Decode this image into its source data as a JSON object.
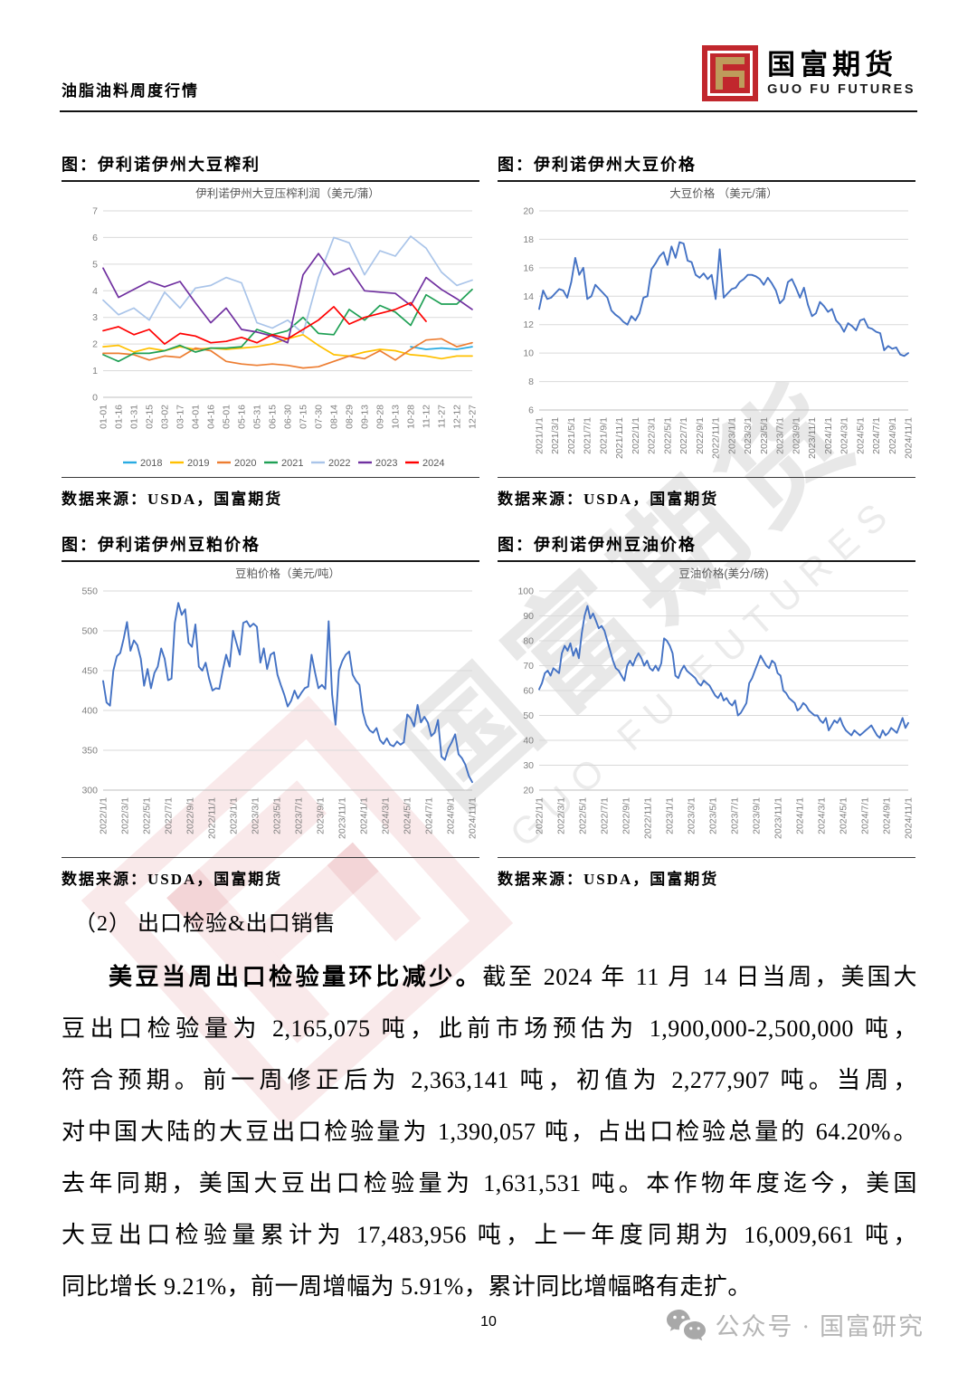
{
  "header": {
    "doc_title": "油脂油料周度行情",
    "brand_cn": "国富期货",
    "brand_en": "GUO FU FUTURES"
  },
  "watermark": {
    "text_cn": "国富期货",
    "text_en": "GUO FU FUTURES"
  },
  "section": {
    "heading": "（2）  出口检验&出口销售"
  },
  "paragraph": {
    "lines": [
      {
        "bold": "美豆当周出口检验量环比减少。",
        "text": "截至 2024 年 11 月 14 日当周，美国大"
      },
      {
        "text": "豆出口检验量为 2,165,075 吨，此前市场预估为 1,900,000-2,500,000 吨，"
      },
      {
        "text": "符合预期。前一周修正后为 2,363,141 吨，初值为 2,277,907 吨。当周，"
      },
      {
        "text": "对中国大陆的大豆出口检验量为 1,390,057 吨，占出口检验总量的 64.20%。"
      },
      {
        "text": "去年同期，美国大豆出口检验量为 1,631,531 吨。本作物年度迄今，美国"
      },
      {
        "text": "大豆出口检验量累计为 17,483,956 吨，上一年度同期为 16,009,661 吨，"
      },
      {
        "text": "同比增长 9.21%，前一周增幅为 5.91%，累计同比增幅略有走扩。"
      }
    ]
  },
  "footer": {
    "page_number": "10",
    "wechat_label": "公众号 · 国富研究"
  },
  "chart_data": [
    {
      "type": "line",
      "heading": "图：伊利诺伊州大豆榨利",
      "title": "伊利诺伊州大豆压榨利润（美元/蒲）",
      "source": "数据来源：USDA，国富期货",
      "ylim": [
        0,
        7
      ],
      "ystep": 1,
      "grid": true,
      "legend_position": "bottom",
      "categories": [
        "01-01",
        "01-16",
        "01-31",
        "02-15",
        "03-02",
        "03-17",
        "04-01",
        "04-16",
        "05-01",
        "05-16",
        "05-31",
        "06-15",
        "06-30",
        "07-15",
        "07-30",
        "08-14",
        "08-29",
        "09-13",
        "09-28",
        "10-13",
        "10-28",
        "11-12",
        "11-27",
        "12-12",
        "12-27"
      ],
      "series": [
        {
          "name": "2018",
          "color": "#29ABE2",
          "values": [
            null,
            null,
            null,
            null,
            null,
            null,
            null,
            null,
            null,
            null,
            null,
            null,
            null,
            null,
            null,
            null,
            null,
            null,
            null,
            null,
            1.9,
            1.8,
            1.85,
            1.8,
            1.9
          ]
        },
        {
          "name": "2019",
          "color": "#FFC000",
          "values": [
            1.9,
            1.95,
            1.7,
            1.85,
            1.75,
            1.9,
            1.8,
            1.85,
            1.8,
            1.85,
            1.9,
            2.0,
            2.2,
            2.35,
            1.95,
            1.6,
            1.55,
            1.7,
            1.8,
            1.75,
            1.6,
            1.55,
            1.45,
            1.55,
            1.55
          ]
        },
        {
          "name": "2020",
          "color": "#ED7D31",
          "values": [
            1.65,
            1.65,
            1.6,
            1.4,
            1.55,
            1.5,
            1.85,
            1.75,
            1.35,
            1.25,
            1.2,
            1.25,
            1.2,
            1.1,
            1.15,
            1.35,
            1.55,
            1.45,
            1.75,
            1.4,
            1.8,
            2.15,
            2.2,
            1.9,
            2.05
          ]
        },
        {
          "name": "2021",
          "color": "#1FA055",
          "values": [
            1.6,
            1.35,
            1.65,
            1.65,
            1.75,
            1.95,
            1.7,
            1.85,
            1.85,
            1.9,
            2.55,
            2.35,
            2.5,
            3.0,
            2.4,
            2.35,
            3.3,
            2.9,
            3.45,
            3.2,
            2.7,
            3.85,
            3.5,
            3.5,
            4.05
          ]
        },
        {
          "name": "2022",
          "color": "#A9C4E9",
          "values": [
            3.65,
            3.1,
            3.35,
            2.9,
            3.95,
            3.35,
            4.1,
            4.2,
            4.5,
            4.3,
            2.8,
            2.6,
            2.9,
            2.4,
            4.5,
            6.0,
            5.8,
            4.6,
            5.5,
            5.3,
            6.05,
            5.6,
            4.7,
            4.2,
            4.4
          ]
        },
        {
          "name": "2023",
          "color": "#7030A0",
          "values": [
            4.85,
            3.75,
            4.05,
            4.35,
            4.15,
            4.35,
            3.55,
            2.8,
            3.35,
            2.55,
            2.45,
            2.3,
            2.05,
            4.6,
            5.4,
            4.6,
            4.85,
            4.0,
            3.95,
            3.9,
            3.45,
            4.5,
            4.05,
            3.7,
            3.3
          ]
        },
        {
          "name": "2024",
          "color": "#FF0000",
          "values": [
            2.5,
            2.65,
            2.35,
            2.55,
            2.0,
            2.4,
            2.3,
            2.05,
            2.1,
            2.25,
            2.05,
            2.35,
            2.2,
            2.55,
            2.9,
            3.4,
            2.75,
            3.0,
            3.15,
            3.3,
            3.55,
            2.85,
            null,
            null,
            null
          ]
        }
      ]
    },
    {
      "type": "line",
      "heading": "图：伊利诺伊州大豆价格",
      "title": "大豆价格 （美元/蒲）",
      "source": "数据来源：USDA，国富期货",
      "ylim": [
        6,
        20
      ],
      "ystep": 2,
      "grid": true,
      "x_ticks": [
        "2021/1/1",
        "2021/3/1",
        "2021/5/1",
        "2021/7/1",
        "2021/9/1",
        "2021/11/1",
        "2022/1/1",
        "2022/3/1",
        "2022/5/1",
        "2022/7/1",
        "2022/9/1",
        "2022/11/1",
        "2023/1/1",
        "2023/3/1",
        "2023/5/1",
        "2023/7/1",
        "2023/9/1",
        "2023/11/1",
        "2024/1/1",
        "2024/3/1",
        "2024/5/1",
        "2024/7/1",
        "2024/9/1",
        "2024/11/1"
      ],
      "series": [
        {
          "name": "大豆价格",
          "color": "#4472C4",
          "values": [
            13.1,
            14.4,
            13.8,
            13.9,
            14.2,
            14.5,
            14.4,
            13.9,
            15.0,
            16.7,
            15.5,
            16.0,
            13.8,
            14.0,
            14.8,
            14.5,
            14.2,
            13.9,
            13.0,
            12.7,
            12.5,
            12.2,
            12.0,
            12.6,
            12.3,
            12.8,
            13.9,
            14.0,
            15.9,
            16.3,
            16.8,
            17.1,
            16.2,
            17.5,
            16.7,
            17.8,
            17.7,
            16.5,
            16.4,
            15.5,
            15.3,
            15.6,
            15.2,
            15.5,
            13.8,
            17.3,
            13.9,
            14.2,
            14.5,
            14.6,
            15.0,
            15.2,
            15.5,
            15.5,
            15.4,
            15.2,
            14.8,
            15.3,
            14.9,
            14.4,
            13.5,
            13.8,
            15.0,
            15.2,
            14.6,
            13.9,
            14.6,
            13.4,
            12.6,
            12.8,
            13.6,
            13.3,
            12.9,
            13.1,
            12.3,
            12.0,
            11.5,
            12.1,
            11.9,
            11.6,
            12.3,
            12.4,
            11.8,
            11.7,
            11.5,
            11.4,
            10.2,
            10.5,
            10.3,
            10.4,
            9.9,
            9.8,
            10.0
          ]
        }
      ]
    },
    {
      "type": "line",
      "heading": "图：伊利诺伊州豆粕价格",
      "title": "豆粕价格（美元/吨）",
      "source": "数据来源：USDA，国富期货",
      "ylim": [
        300,
        550
      ],
      "ystep": 50,
      "grid": true,
      "x_ticks": [
        "2022/1/1",
        "2022/3/1",
        "2022/5/1",
        "2022/7/1",
        "2022/9/1",
        "2022/11/1",
        "2023/1/1",
        "2023/3/1",
        "2023/5/1",
        "2023/7/1",
        "2023/9/1",
        "2023/11/1",
        "2024/1/1",
        "2024/3/1",
        "2024/5/1",
        "2024/7/1",
        "2024/9/1",
        "2024/11/1"
      ],
      "series": [
        {
          "name": "豆粕价格",
          "color": "#4472C4",
          "values": [
            437,
            410,
            406,
            450,
            468,
            472,
            490,
            511,
            475,
            488,
            482,
            465,
            431,
            452,
            428,
            447,
            455,
            478,
            465,
            438,
            440,
            510,
            535,
            520,
            527,
            485,
            480,
            508,
            455,
            450,
            460,
            440,
            425,
            428,
            427,
            450,
            470,
            455,
            500,
            485,
            470,
            510,
            512,
            505,
            509,
            505,
            460,
            478,
            452,
            470,
            473,
            445,
            432,
            420,
            405,
            412,
            425,
            415,
            422,
            428,
            430,
            470,
            448,
            428,
            432,
            427,
            512,
            420,
            382,
            450,
            462,
            470,
            474,
            445,
            437,
            432,
            398,
            382,
            375,
            372,
            378,
            363,
            358,
            365,
            357,
            355,
            361,
            357,
            360,
            395,
            390,
            380,
            407,
            385,
            392,
            385,
            368,
            372,
            388,
            342,
            338,
            352,
            360,
            370,
            345,
            340,
            332,
            318,
            310
          ]
        }
      ]
    },
    {
      "type": "line",
      "heading": "图：伊利诺伊州豆油价格",
      "title": "豆油价格(美分/磅)",
      "source": "数据来源：USDA，国富期货",
      "ylim": [
        20,
        100
      ],
      "ystep": 10,
      "grid": true,
      "x_ticks": [
        "2022/1/1",
        "2022/3/1",
        "2022/5/1",
        "2022/7/1",
        "2022/9/1",
        "2022/11/1",
        "2023/1/1",
        "2023/3/1",
        "2023/5/1",
        "2023/7/1",
        "2023/9/1",
        "2023/11/1",
        "2024/1/1",
        "2024/3/1",
        "2024/5/1",
        "2024/7/1",
        "2024/9/1",
        "2024/11/1"
      ],
      "series": [
        {
          "name": "豆油价格",
          "color": "#4472C4",
          "values": [
            60.5,
            63,
            67,
            68,
            66,
            69,
            68,
            67,
            75,
            78,
            76,
            79,
            74,
            77,
            73,
            83,
            90,
            94,
            89,
            91,
            88,
            85,
            86,
            84,
            80,
            76,
            72,
            69,
            68,
            66,
            64,
            70,
            72,
            70,
            73,
            75,
            73,
            70,
            72,
            69,
            68,
            70,
            68,
            71,
            81,
            80,
            78,
            75,
            66,
            65,
            68,
            70,
            68,
            67,
            66,
            65,
            63,
            62,
            64,
            63,
            62,
            60,
            58,
            57,
            59,
            56,
            57,
            55,
            54,
            56,
            50,
            51,
            53,
            55,
            63,
            65,
            68,
            71,
            74,
            72,
            70,
            69,
            72,
            71,
            67,
            66,
            60,
            59,
            57,
            56,
            55,
            52,
            53,
            55,
            54,
            52,
            51,
            50,
            50,
            48,
            47,
            49,
            44,
            46,
            48,
            47,
            49,
            46,
            44,
            43,
            42,
            44,
            43,
            42,
            43,
            44,
            45,
            46,
            44,
            42,
            41,
            44,
            42,
            43,
            45,
            44,
            43,
            46,
            49,
            45,
            47
          ]
        }
      ]
    }
  ]
}
